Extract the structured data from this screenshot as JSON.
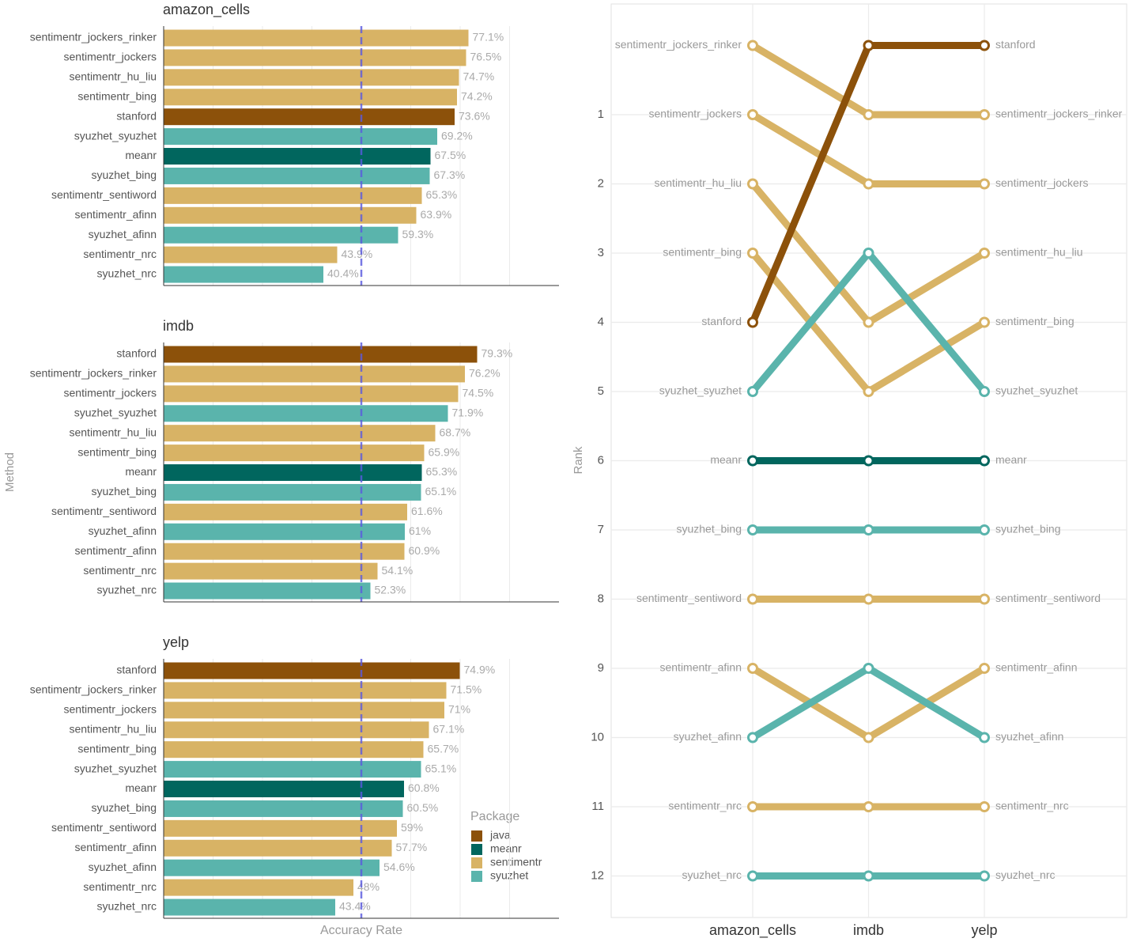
{
  "y_axis_label": "Method",
  "x_axis_label": "Accuracy Rate",
  "legend": {
    "title": "Package",
    "entries": [
      {
        "name": "java",
        "color": "#8c510a"
      },
      {
        "name": "meanr",
        "color": "#01665e"
      },
      {
        "name": "sentimentr",
        "color": "#d8b365"
      },
      {
        "name": "syuzhet",
        "color": "#5ab4ac"
      }
    ]
  },
  "chart_data": [
    {
      "type": "bar",
      "orientation": "horizontal",
      "title": "amazon_cells",
      "categories": [
        "sentimentr_jockers_rinker",
        "sentimentr_jockers",
        "sentimentr_hu_liu",
        "sentimentr_bing",
        "stanford",
        "syuzhet_syuzhet",
        "meanr",
        "syuzhet_bing",
        "sentimentr_sentiword",
        "sentimentr_afinn",
        "syuzhet_afinn",
        "sentimentr_nrc",
        "syuzhet_nrc"
      ],
      "groups": [
        "sentimentr",
        "sentimentr",
        "sentimentr",
        "sentimentr",
        "java",
        "syuzhet",
        "meanr",
        "syuzhet",
        "sentimentr",
        "sentimentr",
        "syuzhet",
        "sentimentr",
        "syuzhet"
      ],
      "values": [
        77.1,
        76.5,
        74.7,
        74.2,
        73.6,
        69.2,
        67.5,
        67.3,
        65.3,
        63.9,
        59.3,
        43.9,
        40.4
      ],
      "value_labels": [
        "77.1%",
        "76.5%",
        "74.7%",
        "74.2%",
        "73.6%",
        "69.2%",
        "67.5%",
        "67.3%",
        "65.3%",
        "63.9%",
        "59.3%",
        "43.9%",
        "40.4%"
      ],
      "xlim": [
        0,
        100
      ],
      "gridlines": [
        12.5,
        25,
        37.5,
        50,
        62.5,
        75,
        87.5
      ],
      "reference_line": 50
    },
    {
      "type": "bar",
      "orientation": "horizontal",
      "title": "imdb",
      "categories": [
        "stanford",
        "sentimentr_jockers_rinker",
        "sentimentr_jockers",
        "syuzhet_syuzhet",
        "sentimentr_hu_liu",
        "sentimentr_bing",
        "meanr",
        "syuzhet_bing",
        "sentimentr_sentiword",
        "syuzhet_afinn",
        "sentimentr_afinn",
        "sentimentr_nrc",
        "syuzhet_nrc"
      ],
      "groups": [
        "java",
        "sentimentr",
        "sentimentr",
        "syuzhet",
        "sentimentr",
        "sentimentr",
        "meanr",
        "syuzhet",
        "sentimentr",
        "syuzhet",
        "sentimentr",
        "sentimentr",
        "syuzhet"
      ],
      "values": [
        79.3,
        76.2,
        74.5,
        71.9,
        68.7,
        65.9,
        65.3,
        65.1,
        61.6,
        61,
        60.9,
        54.1,
        52.3
      ],
      "value_labels": [
        "79.3%",
        "76.2%",
        "74.5%",
        "71.9%",
        "68.7%",
        "65.9%",
        "65.3%",
        "65.1%",
        "61.6%",
        "61%",
        "60.9%",
        "54.1%",
        "52.3%"
      ],
      "xlim": [
        0,
        100
      ],
      "gridlines": [
        12.5,
        25,
        37.5,
        50,
        62.5,
        75,
        87.5
      ],
      "reference_line": 50
    },
    {
      "type": "bar",
      "orientation": "horizontal",
      "title": "yelp",
      "categories": [
        "stanford",
        "sentimentr_jockers_rinker",
        "sentimentr_jockers",
        "sentimentr_hu_liu",
        "sentimentr_bing",
        "syuzhet_syuzhet",
        "meanr",
        "syuzhet_bing",
        "sentimentr_sentiword",
        "sentimentr_afinn",
        "syuzhet_afinn",
        "sentimentr_nrc",
        "syuzhet_nrc"
      ],
      "groups": [
        "java",
        "sentimentr",
        "sentimentr",
        "sentimentr",
        "sentimentr",
        "syuzhet",
        "meanr",
        "syuzhet",
        "sentimentr",
        "sentimentr",
        "syuzhet",
        "sentimentr",
        "syuzhet"
      ],
      "values": [
        74.9,
        71.5,
        71,
        67.1,
        65.7,
        65.1,
        60.8,
        60.5,
        59,
        57.7,
        54.6,
        48,
        43.4
      ],
      "value_labels": [
        "74.9%",
        "71.5%",
        "71%",
        "67.1%",
        "65.7%",
        "65.1%",
        "60.8%",
        "60.5%",
        "59%",
        "57.7%",
        "54.6%",
        "48%",
        "43.4%"
      ],
      "xlim": [
        0,
        100
      ],
      "gridlines": [
        12.5,
        25,
        37.5,
        50,
        62.5,
        75,
        87.5
      ],
      "reference_line": 50
    },
    {
      "type": "bump",
      "y_label": "Rank",
      "categories": [
        "amazon_cells",
        "imdb",
        "yelp"
      ],
      "ylim": [
        -0.6,
        12.6
      ],
      "y_reversed": true,
      "yticks": [
        1,
        2,
        3,
        4,
        5,
        6,
        7,
        8,
        9,
        10,
        11,
        12
      ],
      "grid": true,
      "series": [
        {
          "name": "sentimentr_jockers_rinker",
          "color": "#d8b365",
          "values": [
            0,
            1,
            1
          ]
        },
        {
          "name": "sentimentr_jockers",
          "color": "#d8b365",
          "values": [
            1,
            2,
            2
          ]
        },
        {
          "name": "sentimentr_hu_liu",
          "color": "#d8b365",
          "values": [
            2,
            4,
            3
          ]
        },
        {
          "name": "sentimentr_bing",
          "color": "#d8b365",
          "values": [
            3,
            5,
            4
          ]
        },
        {
          "name": "stanford",
          "color": "#8c510a",
          "values": [
            4,
            0,
            0
          ]
        },
        {
          "name": "syuzhet_syuzhet",
          "color": "#5ab4ac",
          "values": [
            5,
            3,
            5
          ]
        },
        {
          "name": "meanr",
          "color": "#01665e",
          "values": [
            6,
            6,
            6
          ]
        },
        {
          "name": "syuzhet_bing",
          "color": "#5ab4ac",
          "values": [
            7,
            7,
            7
          ]
        },
        {
          "name": "sentimentr_sentiword",
          "color": "#d8b365",
          "values": [
            8,
            8,
            8
          ]
        },
        {
          "name": "sentimentr_afinn",
          "color": "#d8b365",
          "values": [
            9,
            10,
            9
          ]
        },
        {
          "name": "syuzhet_afinn",
          "color": "#5ab4ac",
          "values": [
            10,
            9,
            10
          ]
        },
        {
          "name": "sentimentr_nrc",
          "color": "#d8b365",
          "values": [
            11,
            11,
            11
          ]
        },
        {
          "name": "syuzhet_nrc",
          "color": "#5ab4ac",
          "values": [
            12,
            12,
            12
          ]
        }
      ]
    }
  ]
}
